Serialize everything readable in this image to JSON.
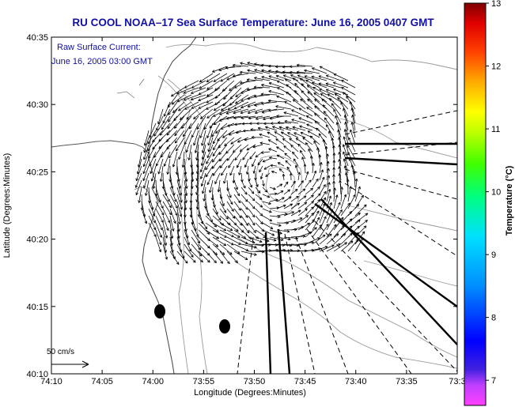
{
  "title": "RU COOL  NOAA–17  Sea Surface Temperature:  June 16, 2005 0407 GMT",
  "annotation": {
    "line1": "Raw Surface Current:",
    "line2": "June 16, 2005 03:00 GMT"
  },
  "axes": {
    "xlabel": "Longitude (Degrees:Minutes)",
    "ylabel": "Latitude (Degrees:Minutes)",
    "xticks": [
      "74:10",
      "74:05",
      "74:00",
      "73:55",
      "73:50",
      "73:45",
      "73:40",
      "73:35",
      "73:3"
    ],
    "yticks": [
      "40:35",
      "40:30",
      "40:25",
      "40:20",
      "40:15",
      "40:10"
    ]
  },
  "colorbar": {
    "label": "Temperature (°C)",
    "ticks": [
      "13",
      "12",
      "11",
      "10",
      "9",
      "8",
      "7"
    ],
    "range": [
      6.6,
      13
    ]
  },
  "scale_bar": {
    "label": "50 cm/s"
  },
  "colors": {
    "title": "#1010a8",
    "contour": "#9a9a9a",
    "coast": "#555555",
    "vectors": "#000000"
  }
}
